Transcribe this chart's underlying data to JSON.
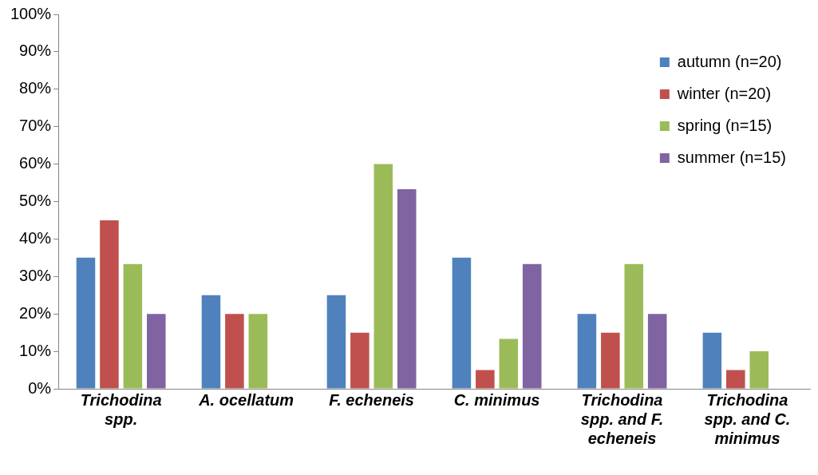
{
  "chart_data": {
    "type": "bar",
    "categories": [
      "Trichodina spp.",
      "A. ocellatum",
      "F. echeneis",
      "C. minimus",
      "Trichodina spp. and F. echeneis",
      "Trichodina spp. and C. minimus"
    ],
    "series": [
      {
        "name": "autumn (n=20)",
        "color": "#4f81bd",
        "values": [
          35,
          25,
          25,
          35,
          20,
          15
        ]
      },
      {
        "name": "winter (n=20)",
        "color": "#c0504d",
        "values": [
          45,
          20,
          15,
          5,
          15,
          5
        ]
      },
      {
        "name": "spring (n=15)",
        "color": "#9bbb59",
        "values": [
          33.3,
          20,
          60,
          13.3,
          33.3,
          10
        ]
      },
      {
        "name": "summer (n=15)",
        "color": "#8064a2",
        "values": [
          20,
          0,
          53.3,
          33.3,
          20,
          0
        ]
      }
    ],
    "ylim": [
      0,
      100
    ],
    "yticks": [
      {
        "value": 0,
        "label": "0%"
      },
      {
        "value": 10,
        "label": "10%"
      },
      {
        "value": 20,
        "label": "20%"
      },
      {
        "value": 30,
        "label": "30%"
      },
      {
        "value": 40,
        "label": "40%"
      },
      {
        "value": 50,
        "label": "50%"
      },
      {
        "value": 60,
        "label": "60%"
      },
      {
        "value": 70,
        "label": "70%"
      },
      {
        "value": 80,
        "label": "80%"
      },
      {
        "value": 90,
        "label": "90%"
      },
      {
        "value": 100,
        "label": "100%"
      }
    ],
    "grid": false,
    "legend": "top right"
  }
}
